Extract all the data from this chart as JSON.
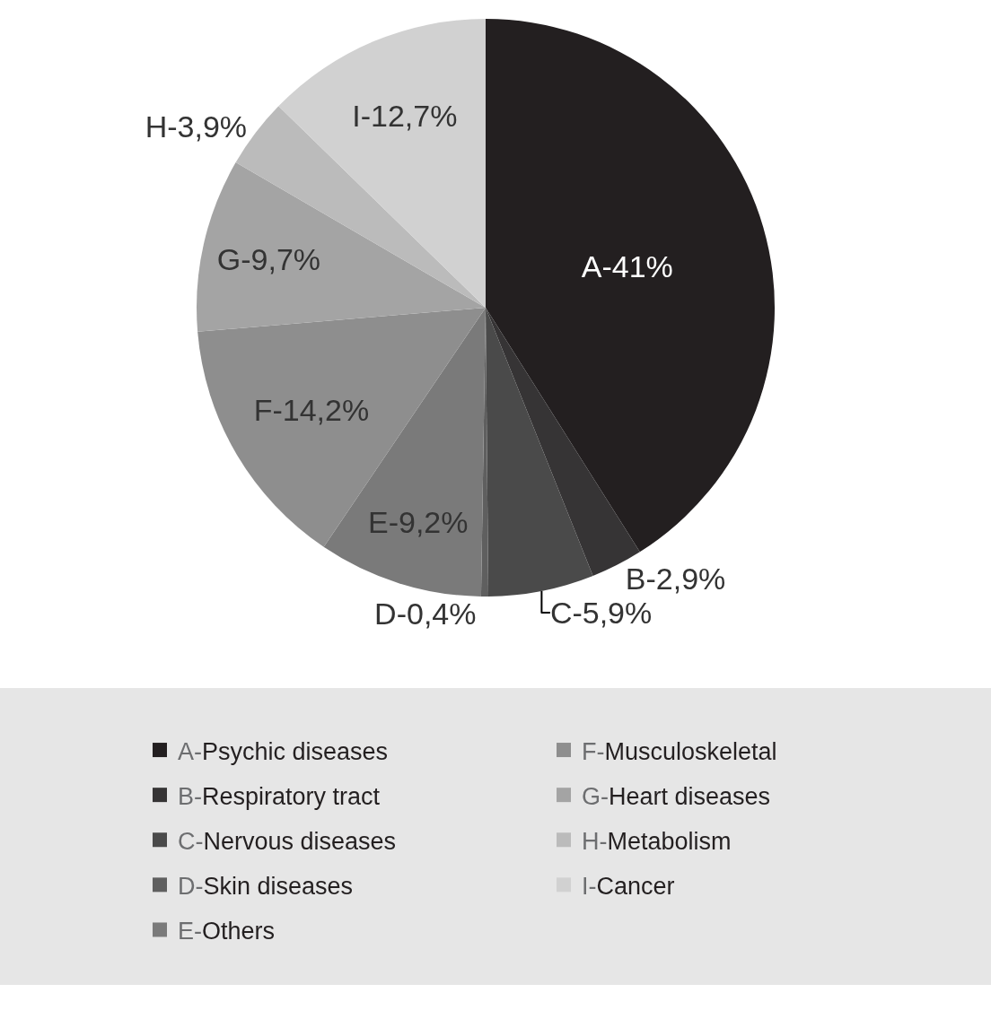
{
  "chart_data": {
    "type": "pie",
    "categories": [
      "A-Psychic diseases",
      "B-Respiratory tract",
      "C-Nervous diseases",
      "D-Skin diseases",
      "E-Others",
      "F-Musculoskeletal",
      "G-Heart diseases",
      "H-Metabolism",
      "I-Cancer"
    ],
    "values": [
      41,
      2.9,
      5.9,
      0.4,
      9.2,
      14.2,
      9.7,
      3.9,
      12.7
    ],
    "colors": [
      "#231f20",
      "#363435",
      "#4a4a4a",
      "#5f5f5f",
      "#7a7a7a",
      "#8e8e8e",
      "#a4a4a4",
      "#bbbbbb",
      "#d1d1d1"
    ],
    "value_labels": [
      "A-41%",
      "B-2,9%",
      "C-5,9%",
      "D-0,4%",
      "E-9,2%",
      "F-14,2%",
      "G-9,7%",
      "H-3,9%",
      "I-12,7%"
    ],
    "legend": "bottom"
  }
}
